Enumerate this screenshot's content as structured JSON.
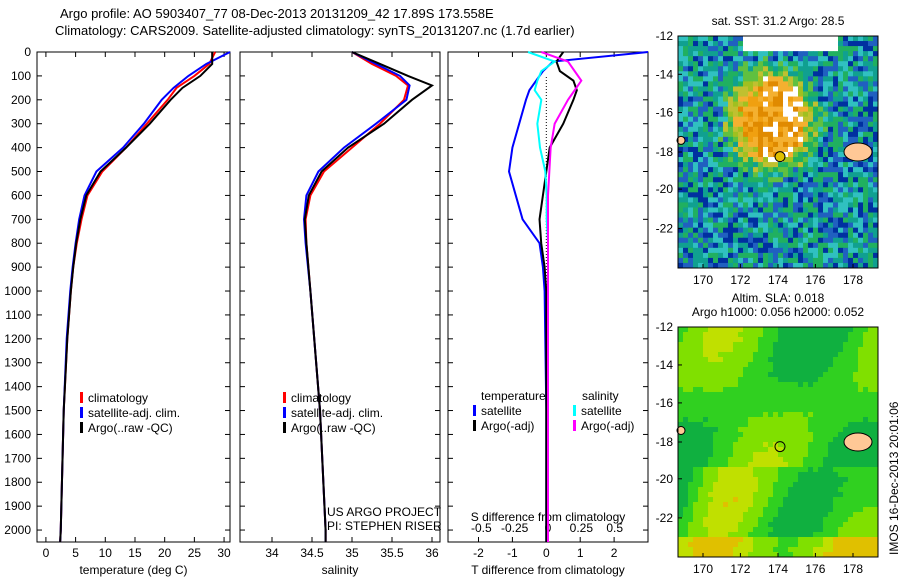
{
  "title_line1": "Argo profile: AO 5903407_77 08-Dec-2013 20131209_42 17.89S 173.558E",
  "title_line2": "Climatology: CARS2009. Satellite-adjusted climatology: synTS_20131207.nc (1.7d earlier)",
  "colors": {
    "climatology": "#ff0000",
    "satellite": "#0000ff",
    "argo": "#000000",
    "sal_sat": "#00ffff",
    "sal_argo": "#ff00ff"
  },
  "chart_data": [
    {
      "type": "line",
      "title": "",
      "xlabel": "temperature (deg C)",
      "ylabel": "",
      "xlim": [
        -1.5,
        31
      ],
      "ylim": [
        2050,
        0
      ],
      "xticks": [
        0,
        5,
        10,
        15,
        20,
        25,
        30
      ],
      "yticks": [
        0,
        100,
        200,
        300,
        400,
        500,
        600,
        700,
        800,
        900,
        1000,
        1100,
        1200,
        1300,
        1400,
        1500,
        1600,
        1700,
        1800,
        1900,
        2000
      ],
      "depth": [
        0,
        50,
        100,
        150,
        200,
        300,
        400,
        500,
        600,
        700,
        800,
        900,
        1000,
        1200,
        1500,
        2000,
        2050
      ],
      "series": [
        {
          "name": "climatology",
          "color": "#ff0000",
          "values": [
            28.5,
            27.5,
            25,
            22,
            20.5,
            17,
            13.5,
            9.5,
            7,
            6,
            5.2,
            4.6,
            4.2,
            3.6,
            3,
            2.5,
            2.4
          ]
        },
        {
          "name": "satellite-adj. clim.",
          "color": "#0000ff",
          "values": [
            31,
            27,
            24,
            21.5,
            19.5,
            16.5,
            13,
            8.5,
            6.5,
            5.6,
            5,
            4.5,
            4.1,
            3.5,
            3,
            2.5,
            2.4
          ]
        },
        {
          "name": "Argo(..raw -QC)",
          "color": "#000000",
          "values": [
            28,
            28,
            26,
            23,
            21,
            17.5,
            13.5,
            9.2,
            6.8,
            5.8,
            5.1,
            4.6,
            4.2,
            3.6,
            3,
            2.5,
            2.4
          ]
        }
      ],
      "legend": [
        "climatology",
        "satellite-adj. clim.",
        "Argo(..raw -QC)"
      ],
      "legend_position": "bottom-center"
    },
    {
      "type": "line",
      "xlabel": "salinity",
      "xlim": [
        33.6,
        36.1
      ],
      "ylim": [
        2050,
        0
      ],
      "xticks": [
        34,
        34.5,
        35,
        35.5,
        36
      ],
      "depth": [
        0,
        50,
        100,
        140,
        200,
        300,
        400,
        500,
        600,
        700,
        800,
        1000,
        1500,
        2000,
        2050
      ],
      "series": [
        {
          "name": "climatology",
          "color": "#ff0000",
          "values": [
            35.0,
            35.25,
            35.55,
            35.7,
            35.65,
            35.35,
            35.0,
            34.65,
            34.48,
            34.42,
            34.43,
            34.48,
            34.6,
            34.67,
            34.67
          ]
        },
        {
          "name": "satellite-adj. clim.",
          "color": "#0000ff",
          "values": [
            35.0,
            35.3,
            35.6,
            35.72,
            35.68,
            35.3,
            34.9,
            34.58,
            34.43,
            34.4,
            34.42,
            34.48,
            34.6,
            34.67,
            34.67
          ]
        },
        {
          "name": "Argo(..raw -QC)",
          "color": "#000000",
          "values": [
            35.0,
            35.35,
            35.7,
            36.0,
            35.75,
            35.4,
            34.95,
            34.62,
            34.46,
            34.41,
            34.43,
            34.48,
            34.6,
            34.67,
            34.67
          ]
        }
      ],
      "legend": [
        "climatology",
        "satellite-adj. clim.",
        "Argo(..raw -QC)"
      ],
      "annotation": [
        "US ARGO PROJECT",
        "PI: STEPHEN RISER"
      ]
    },
    {
      "type": "line",
      "xlabel": "T difference from climatology",
      "x2label": "S difference from climatology",
      "xlim": [
        -2.9,
        3
      ],
      "x2lim": [
        -0.75,
        0.75
      ],
      "ylim": [
        2050,
        0
      ],
      "xticks": [
        -2,
        -1,
        0,
        1,
        2
      ],
      "x2ticks": [
        "-0.5",
        "-0.25",
        "0",
        "0.25",
        "0.5"
      ],
      "x2tickvals": [
        -0.5,
        -0.25,
        0,
        0.25,
        0.5
      ],
      "depth": [
        0,
        40,
        80,
        120,
        160,
        200,
        300,
        400,
        500,
        600,
        700,
        800,
        900,
        1000,
        1500,
        2000,
        2050
      ],
      "series": [
        {
          "name": "temperature satellite",
          "color": "#0000ff",
          "axis": "T",
          "values": [
            3,
            0.2,
            -0.1,
            -0.3,
            -0.5,
            -0.6,
            -0.8,
            -1.0,
            -1.1,
            -0.9,
            -0.7,
            -0.2,
            -0.1,
            -0.05,
            0,
            0,
            0
          ]
        },
        {
          "name": "temperature Argo(-adj)",
          "color": "#000000",
          "axis": "T",
          "values": [
            0.5,
            0.3,
            0.4,
            0.8,
            0.9,
            0.8,
            0.5,
            0.1,
            0,
            -0.1,
            -0.2,
            -0.15,
            -0.05,
            0,
            0,
            0,
            0
          ]
        },
        {
          "name": "salinity satellite",
          "color": "#00ffff",
          "axis": "S",
          "values": [
            -0.15,
            0.05,
            -0.05,
            -0.08,
            -0.1,
            -0.05,
            -0.08,
            -0.06,
            -0.02,
            -0.01,
            -0.01,
            0,
            0,
            0,
            0,
            0,
            0
          ]
        },
        {
          "name": "salinity Argo(-adj)",
          "color": "#ff00ff",
          "axis": "S",
          "values": [
            -0.05,
            0.15,
            0.2,
            0.25,
            0.2,
            0.15,
            0.05,
            0.02,
            0.01,
            0,
            0,
            0,
            0,
            0,
            0,
            0,
            0
          ]
        }
      ],
      "legend_headers": [
        "temperature",
        "salinity"
      ],
      "legend": [
        "satellite",
        "Argo(-adj)",
        "satellite",
        "Argo(-adj)"
      ]
    }
  ],
  "maps": {
    "sst_title": "sat. SST: 31.2 Argo: 28.5",
    "sla_title1": "Altim. SLA: 0.018",
    "sla_title2": "Argo h1000: 0.056 h2000: 0.052",
    "xticks": [
      "170",
      "172",
      "174",
      "176",
      "178"
    ],
    "yticks": [
      "-12",
      "-14",
      "-16",
      "-18",
      "-20",
      "-22"
    ],
    "credit": "IMOS 16-Dec-2013 20:01:06"
  }
}
